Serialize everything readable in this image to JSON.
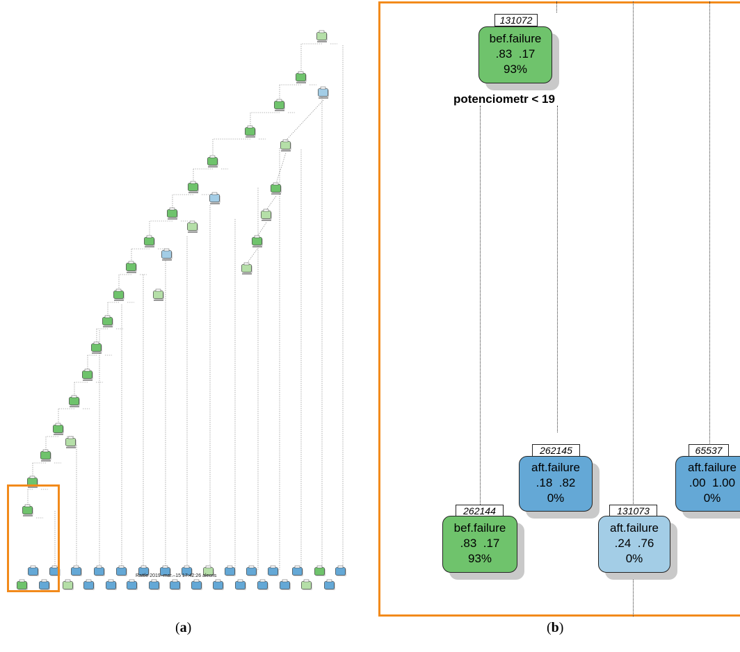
{
  "panel_a": {
    "footer": "Rattle 2019–mar.–15 17:42:26 alecris",
    "caption": "a",
    "colors": {
      "green": "#6fc36c",
      "light_green": "#b5dfa8",
      "blue": "#64a8d6",
      "light_blue": "#a3cde6",
      "highlight": "#f28a1b"
    }
  },
  "panel_b": {
    "caption": "b",
    "root": {
      "id": "131072",
      "class": "bef.failure",
      "probs": ".83  .17",
      "pct": "93%",
      "split": "potenciometr < 19"
    },
    "nodes": [
      {
        "id": "262145",
        "class": "aft.failure",
        "probs": ".18  .82",
        "pct": "0%"
      },
      {
        "id": "65537",
        "class": "aft.failure",
        "probs": ".00  1.00",
        "pct": "0%"
      },
      {
        "id": "262144",
        "class": "bef.failure",
        "probs": ".83  .17",
        "pct": "93%"
      },
      {
        "id": "131073",
        "class": "aft.failure",
        "probs": ".24  .76",
        "pct": "0%"
      }
    ]
  }
}
